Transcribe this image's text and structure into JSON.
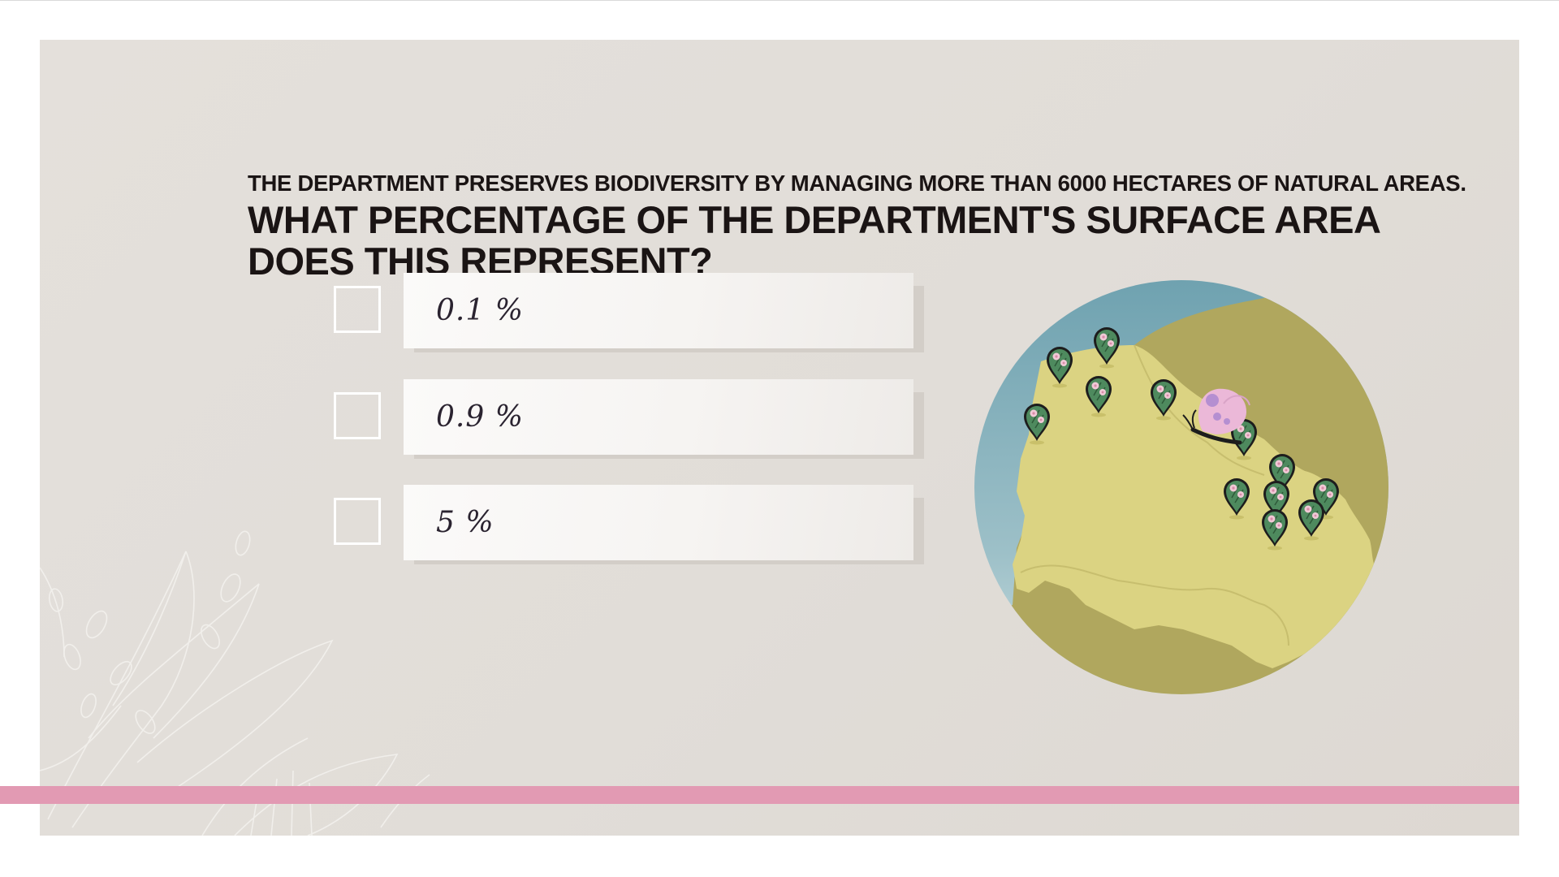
{
  "question": {
    "intro": "THE DEPARTMENT PRESERVES BIODIVERSITY BY MANAGING MORE THAN 6000 HECTARES OF NATURAL AREAS.",
    "line1": "WHAT PERCENTAGE OF THE DEPARTMENT'S SURFACE AREA",
    "line2": "DOES THIS REPRESENT?"
  },
  "answers": [
    {
      "label": "0.1 %"
    },
    {
      "label": "0.9 %"
    },
    {
      "label": "5 %"
    }
  ],
  "map": {
    "icons": [
      "map-pin-icon",
      "butterfly-icon"
    ]
  },
  "colors": {
    "background": "#e1ddd8",
    "accent_bar": "#e29ab3",
    "land_region": "#dbd382",
    "land_neighbor": "#b0a75e",
    "sea": "#7aa8b4",
    "pin": "#4e8a5e",
    "butterfly": "#ebb8d8"
  }
}
